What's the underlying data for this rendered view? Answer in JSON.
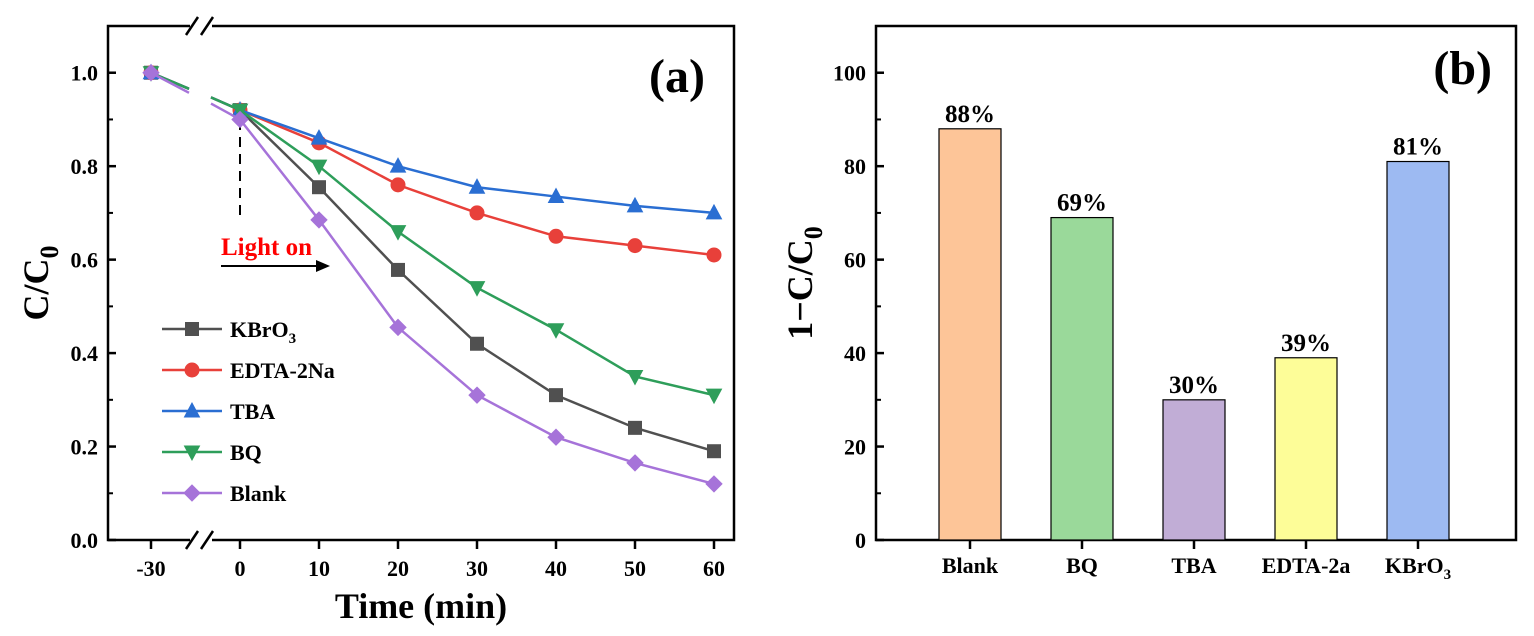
{
  "chart_data": [
    {
      "type": "line",
      "panel_label": "(a)",
      "xlabel": "Time (min)",
      "ylabel": {
        "main": "C/C",
        "sub": "0"
      },
      "x": [
        -30,
        0,
        10,
        20,
        30,
        40,
        50,
        60
      ],
      "x_ticks": [
        "-30",
        "0",
        "10",
        "20",
        "30",
        "40",
        "50",
        "60"
      ],
      "x_axis_break": "between -30 and 0",
      "ylim": [
        0,
        1.1
      ],
      "y_ticks": [
        "0.0",
        "0.2",
        "0.4",
        "0.6",
        "0.8",
        "1.0"
      ],
      "annotation": "Light on",
      "annotation_x": 0,
      "legend_position": "bottom-left",
      "series": [
        {
          "name": "KBrO",
          "name_sub": "3",
          "color": "#505050",
          "marker": "square",
          "values": [
            1.0,
            0.92,
            0.755,
            0.578,
            0.42,
            0.31,
            0.24,
            0.19
          ]
        },
        {
          "name": "EDTA-2Na",
          "name_sub": "",
          "color": "#e8403a",
          "marker": "circle",
          "values": [
            1.0,
            0.92,
            0.85,
            0.76,
            0.7,
            0.65,
            0.63,
            0.61
          ]
        },
        {
          "name": "TBA",
          "name_sub": "",
          "color": "#2a6ed2",
          "marker": "triangle-up",
          "values": [
            1.0,
            0.92,
            0.86,
            0.8,
            0.755,
            0.735,
            0.715,
            0.7
          ]
        },
        {
          "name": "BQ",
          "name_sub": "",
          "color": "#2e9e5a",
          "marker": "triangle-down",
          "values": [
            1.0,
            0.92,
            0.8,
            0.66,
            0.54,
            0.45,
            0.35,
            0.31
          ]
        },
        {
          "name": "Blank",
          "name_sub": "",
          "color": "#a673d9",
          "marker": "diamond",
          "values": [
            1.0,
            0.9,
            0.685,
            0.455,
            0.31,
            0.22,
            0.165,
            0.12
          ]
        }
      ]
    },
    {
      "type": "bar",
      "panel_label": "(b)",
      "ylabel": {
        "main": "1−C/C",
        "sub": "0"
      },
      "ylim": [
        0,
        110
      ],
      "y_ticks": [
        "0",
        "20",
        "40",
        "60",
        "80",
        "100"
      ],
      "categories": [
        {
          "name": "Blank",
          "sub": ""
        },
        {
          "name": "BQ",
          "sub": ""
        },
        {
          "name": "TBA",
          "sub": ""
        },
        {
          "name": "EDTA-2a",
          "sub": ""
        },
        {
          "name": "KBrO",
          "sub": "3"
        }
      ],
      "values": [
        88,
        69,
        30,
        39,
        81
      ],
      "value_labels": [
        "88%",
        "69%",
        "30%",
        "39%",
        "81%"
      ],
      "colors": [
        "#fdc598",
        "#9ad99a",
        "#c1add6",
        "#fdfd98",
        "#9dbaf2"
      ]
    }
  ]
}
